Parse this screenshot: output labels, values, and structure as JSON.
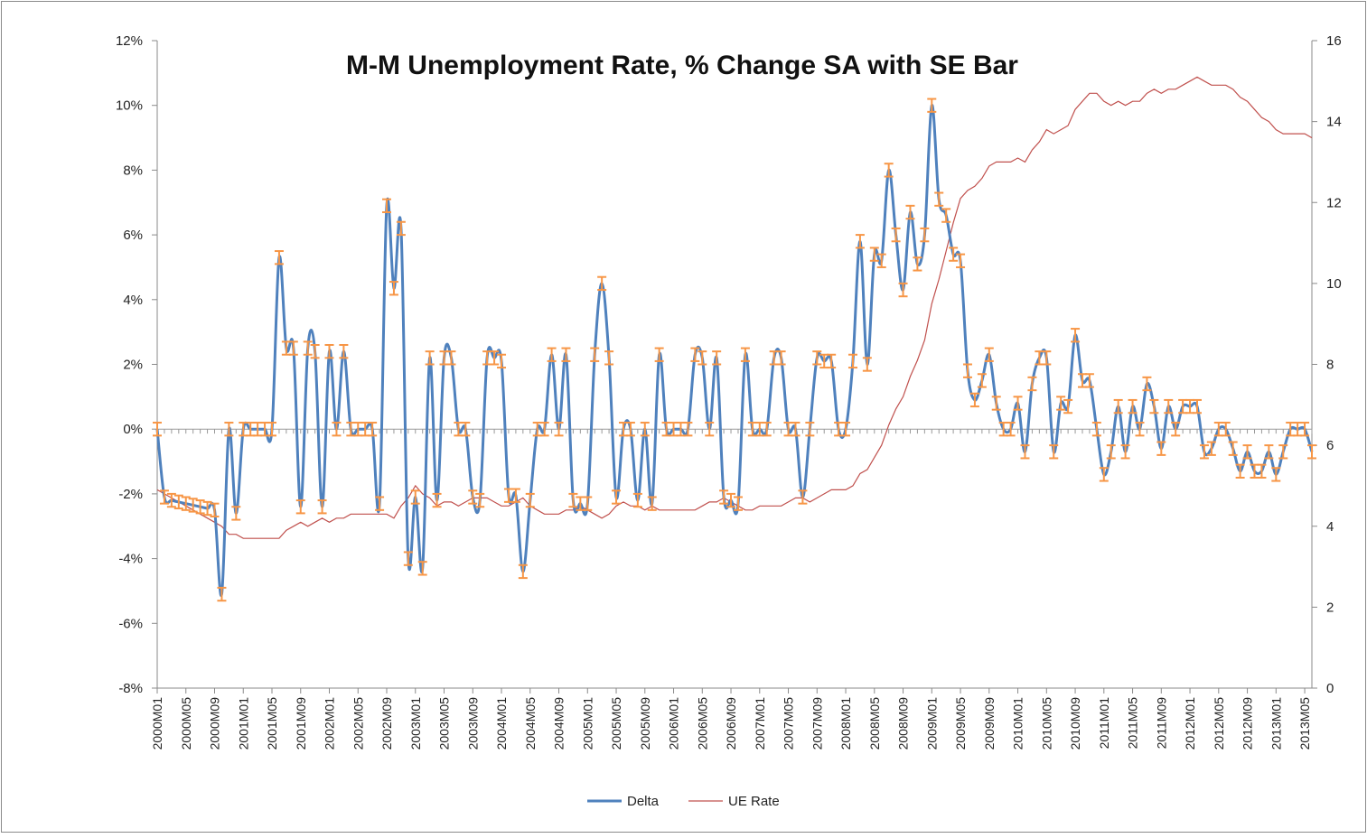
{
  "chart_data": {
    "type": "line",
    "title": "M-M Unemployment Rate, % Change SA with SE Bar",
    "xlabel": "",
    "ylabel": "",
    "y_left": {
      "min": -8,
      "max": 12,
      "step": 2,
      "unit": "%",
      "ticks": [
        "12%",
        "10%",
        "8%",
        "6%",
        "4%",
        "2%",
        "0%",
        "-2%",
        "-4%",
        "-6%",
        "-8%"
      ]
    },
    "y_right": {
      "min": 0,
      "max": 16,
      "step": 2,
      "ticks": [
        "16",
        "14",
        "12",
        "10",
        "8",
        "6",
        "4",
        "2",
        "0"
      ]
    },
    "x_tick_labels": [
      "2000M01",
      "2000M05",
      "2000M09",
      "2001M01",
      "2001M05",
      "2001M09",
      "2002M01",
      "2002M05",
      "2002M09",
      "2003M01",
      "2003M05",
      "2003M09",
      "2004M01",
      "2004M05",
      "2004M09",
      "2005M01",
      "2005M05",
      "2005M09",
      "2006M01",
      "2006M05",
      "2006M09",
      "2007M01",
      "2007M05",
      "2007M09",
      "2008M01",
      "2008M05",
      "2008M09",
      "2009M01",
      "2009M05",
      "2009M09",
      "2010M01",
      "2010M05",
      "2010M09",
      "2011M01",
      "2011M05",
      "2011M09",
      "2012M01",
      "2012M05",
      "2012M09",
      "2013M01",
      "2013M05"
    ],
    "error_bar_half_width": 0.2,
    "legend": {
      "position": "bottom",
      "entries": [
        {
          "name": "Delta",
          "color": "#4f81bd"
        },
        {
          "name": "UE Rate",
          "color": "#c0504d"
        }
      ]
    },
    "colors": {
      "delta": "#4f81bd",
      "ue_rate": "#c0504d",
      "error_bar": "#f79646",
      "zero_line": "#999999"
    },
    "series": [
      {
        "name": "Delta",
        "axis": "left",
        "values": [
          0.0,
          -2.1,
          -2.2,
          -2.25,
          -2.3,
          -2.35,
          -2.4,
          -2.45,
          -2.5,
          -5.1,
          0.0,
          -2.6,
          0.0,
          0.0,
          0.0,
          0.0,
          0.0,
          5.3,
          2.5,
          2.5,
          -2.4,
          2.5,
          2.4,
          -2.4,
          2.4,
          0.0,
          2.4,
          0.0,
          0.0,
          0.0,
          0.0,
          -2.3,
          6.9,
          4.35,
          6.2,
          -4.0,
          -2.1,
          -4.3,
          2.2,
          -2.2,
          2.2,
          2.2,
          0.0,
          0.0,
          -2.1,
          -2.2,
          2.2,
          2.2,
          2.1,
          -2.05,
          -2.05,
          -4.4,
          -2.2,
          0.0,
          0.0,
          2.3,
          0.0,
          2.3,
          -2.2,
          -2.3,
          -2.3,
          2.3,
          4.5,
          2.2,
          -2.1,
          0.0,
          0.0,
          -2.2,
          0.0,
          -2.3,
          2.3,
          0.0,
          0.0,
          0.0,
          0.0,
          2.3,
          2.2,
          0.0,
          2.2,
          -2.1,
          -2.2,
          -2.3,
          2.3,
          0.0,
          0.0,
          0.0,
          2.2,
          2.2,
          0.0,
          0.0,
          -2.1,
          0.0,
          2.2,
          2.1,
          2.1,
          0.0,
          0.0,
          2.1,
          5.8,
          2.0,
          5.4,
          5.2,
          8.0,
          6.0,
          4.3,
          6.7,
          5.1,
          6.0,
          10.0,
          7.1,
          6.6,
          5.4,
          5.2,
          1.8,
          0.9,
          1.5,
          2.3,
          0.8,
          0.0,
          0.0,
          0.8,
          -0.7,
          1.4,
          2.2,
          2.2,
          -0.7,
          0.8,
          0.7,
          2.9,
          1.5,
          1.5,
          0.0,
          -1.4,
          -0.7,
          0.7,
          -0.7,
          0.7,
          0.0,
          1.4,
          0.7,
          -0.6,
          0.7,
          0.0,
          0.7,
          0.7,
          0.7,
          -0.7,
          -0.6,
          0.0,
          0.0,
          -0.6,
          -1.3,
          -0.7,
          -1.3,
          -1.3,
          -0.7,
          -1.4,
          -0.7,
          0.0,
          0.0,
          0.0,
          -0.7
        ]
      },
      {
        "name": "UE Rate",
        "axis": "right",
        "values": [
          4.9,
          4.8,
          4.7,
          4.6,
          4.5,
          4.4,
          4.3,
          4.2,
          4.1,
          4.0,
          3.8,
          3.8,
          3.7,
          3.7,
          3.7,
          3.7,
          3.7,
          3.7,
          3.9,
          4.0,
          4.1,
          4.0,
          4.1,
          4.2,
          4.1,
          4.2,
          4.2,
          4.3,
          4.3,
          4.3,
          4.3,
          4.3,
          4.3,
          4.2,
          4.5,
          4.7,
          5.0,
          4.8,
          4.7,
          4.5,
          4.6,
          4.6,
          4.5,
          4.6,
          4.7,
          4.7,
          4.7,
          4.6,
          4.5,
          4.5,
          4.6,
          4.7,
          4.5,
          4.4,
          4.3,
          4.3,
          4.3,
          4.4,
          4.4,
          4.5,
          4.4,
          4.3,
          4.2,
          4.3,
          4.5,
          4.6,
          4.5,
          4.5,
          4.4,
          4.5,
          4.4,
          4.4,
          4.4,
          4.4,
          4.4,
          4.4,
          4.5,
          4.6,
          4.6,
          4.7,
          4.6,
          4.5,
          4.4,
          4.4,
          4.5,
          4.5,
          4.5,
          4.5,
          4.6,
          4.7,
          4.7,
          4.6,
          4.7,
          4.8,
          4.9,
          4.9,
          4.9,
          5.0,
          5.3,
          5.4,
          5.7,
          6.0,
          6.5,
          6.9,
          7.2,
          7.7,
          8.1,
          8.6,
          9.5,
          10.1,
          10.8,
          11.5,
          12.1,
          12.3,
          12.4,
          12.6,
          12.9,
          13.0,
          13.0,
          13.0,
          13.1,
          13.0,
          13.3,
          13.5,
          13.8,
          13.7,
          13.8,
          13.9,
          14.3,
          14.5,
          14.7,
          14.7,
          14.5,
          14.4,
          14.5,
          14.4,
          14.5,
          14.5,
          14.7,
          14.8,
          14.7,
          14.8,
          14.8,
          14.9,
          15.0,
          15.1,
          15.0,
          14.9,
          14.9,
          14.9,
          14.8,
          14.6,
          14.5,
          14.3,
          14.1,
          14.0,
          13.8,
          13.7,
          13.7,
          13.7,
          13.7,
          13.6
        ]
      }
    ]
  }
}
